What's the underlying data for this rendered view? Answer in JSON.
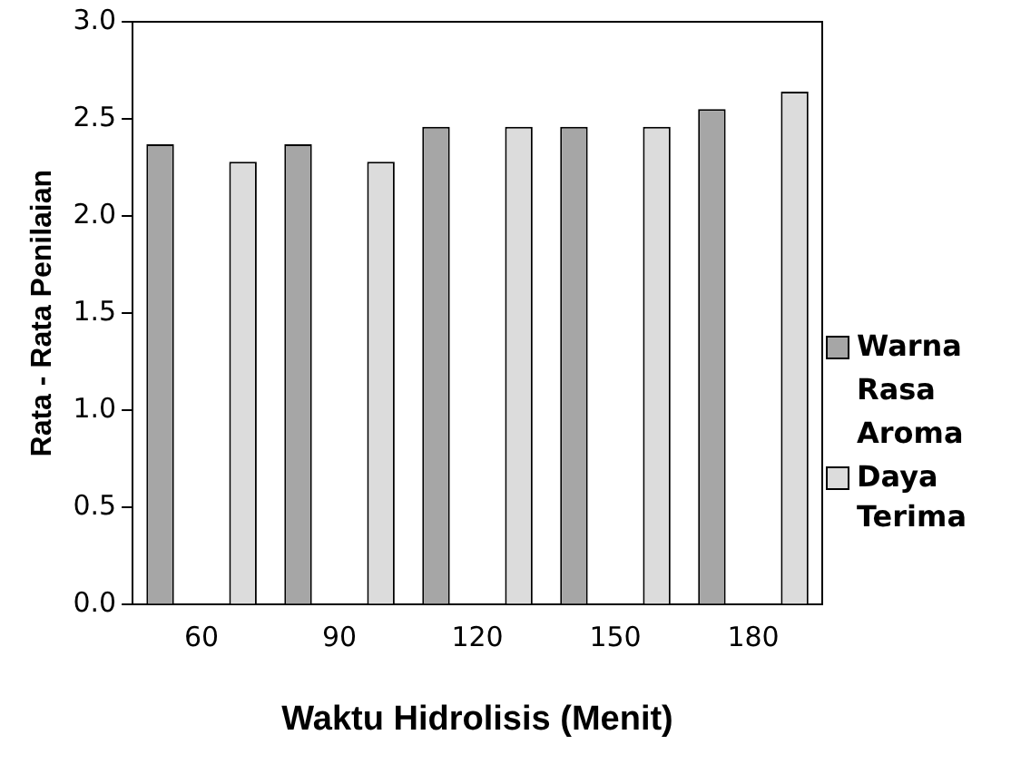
{
  "chart_data": {
    "type": "bar",
    "xlabel": "Waktu Hidrolisis (Menit)",
    "ylabel": "Rata - Rata Penilaian",
    "categories": [
      "60",
      "90",
      "120",
      "150",
      "180"
    ],
    "series": [
      {
        "name": "Warna",
        "color": "#a6a6a6",
        "values": [
          2.37,
          2.37,
          2.46,
          2.46,
          2.55
        ]
      },
      {
        "name": "Rasa",
        "values": [
          null,
          null,
          null,
          null,
          null
        ]
      },
      {
        "name": "Aroma",
        "values": [
          null,
          null,
          null,
          null,
          null
        ]
      },
      {
        "name": "Daya Terima",
        "color": "#dcdcdc",
        "values": [
          2.28,
          2.28,
          2.46,
          2.46,
          2.64
        ]
      }
    ],
    "ylim": [
      0,
      3
    ],
    "yticks": [
      {
        "value": 0,
        "label": "0.0"
      },
      0.5,
      {
        "value": 1,
        "label": "1.0"
      },
      1.5,
      {
        "value": 2,
        "label": "2.0"
      },
      2.5,
      {
        "value": 3,
        "label": "3.0"
      }
    ],
    "grid": false,
    "legend": "right"
  }
}
